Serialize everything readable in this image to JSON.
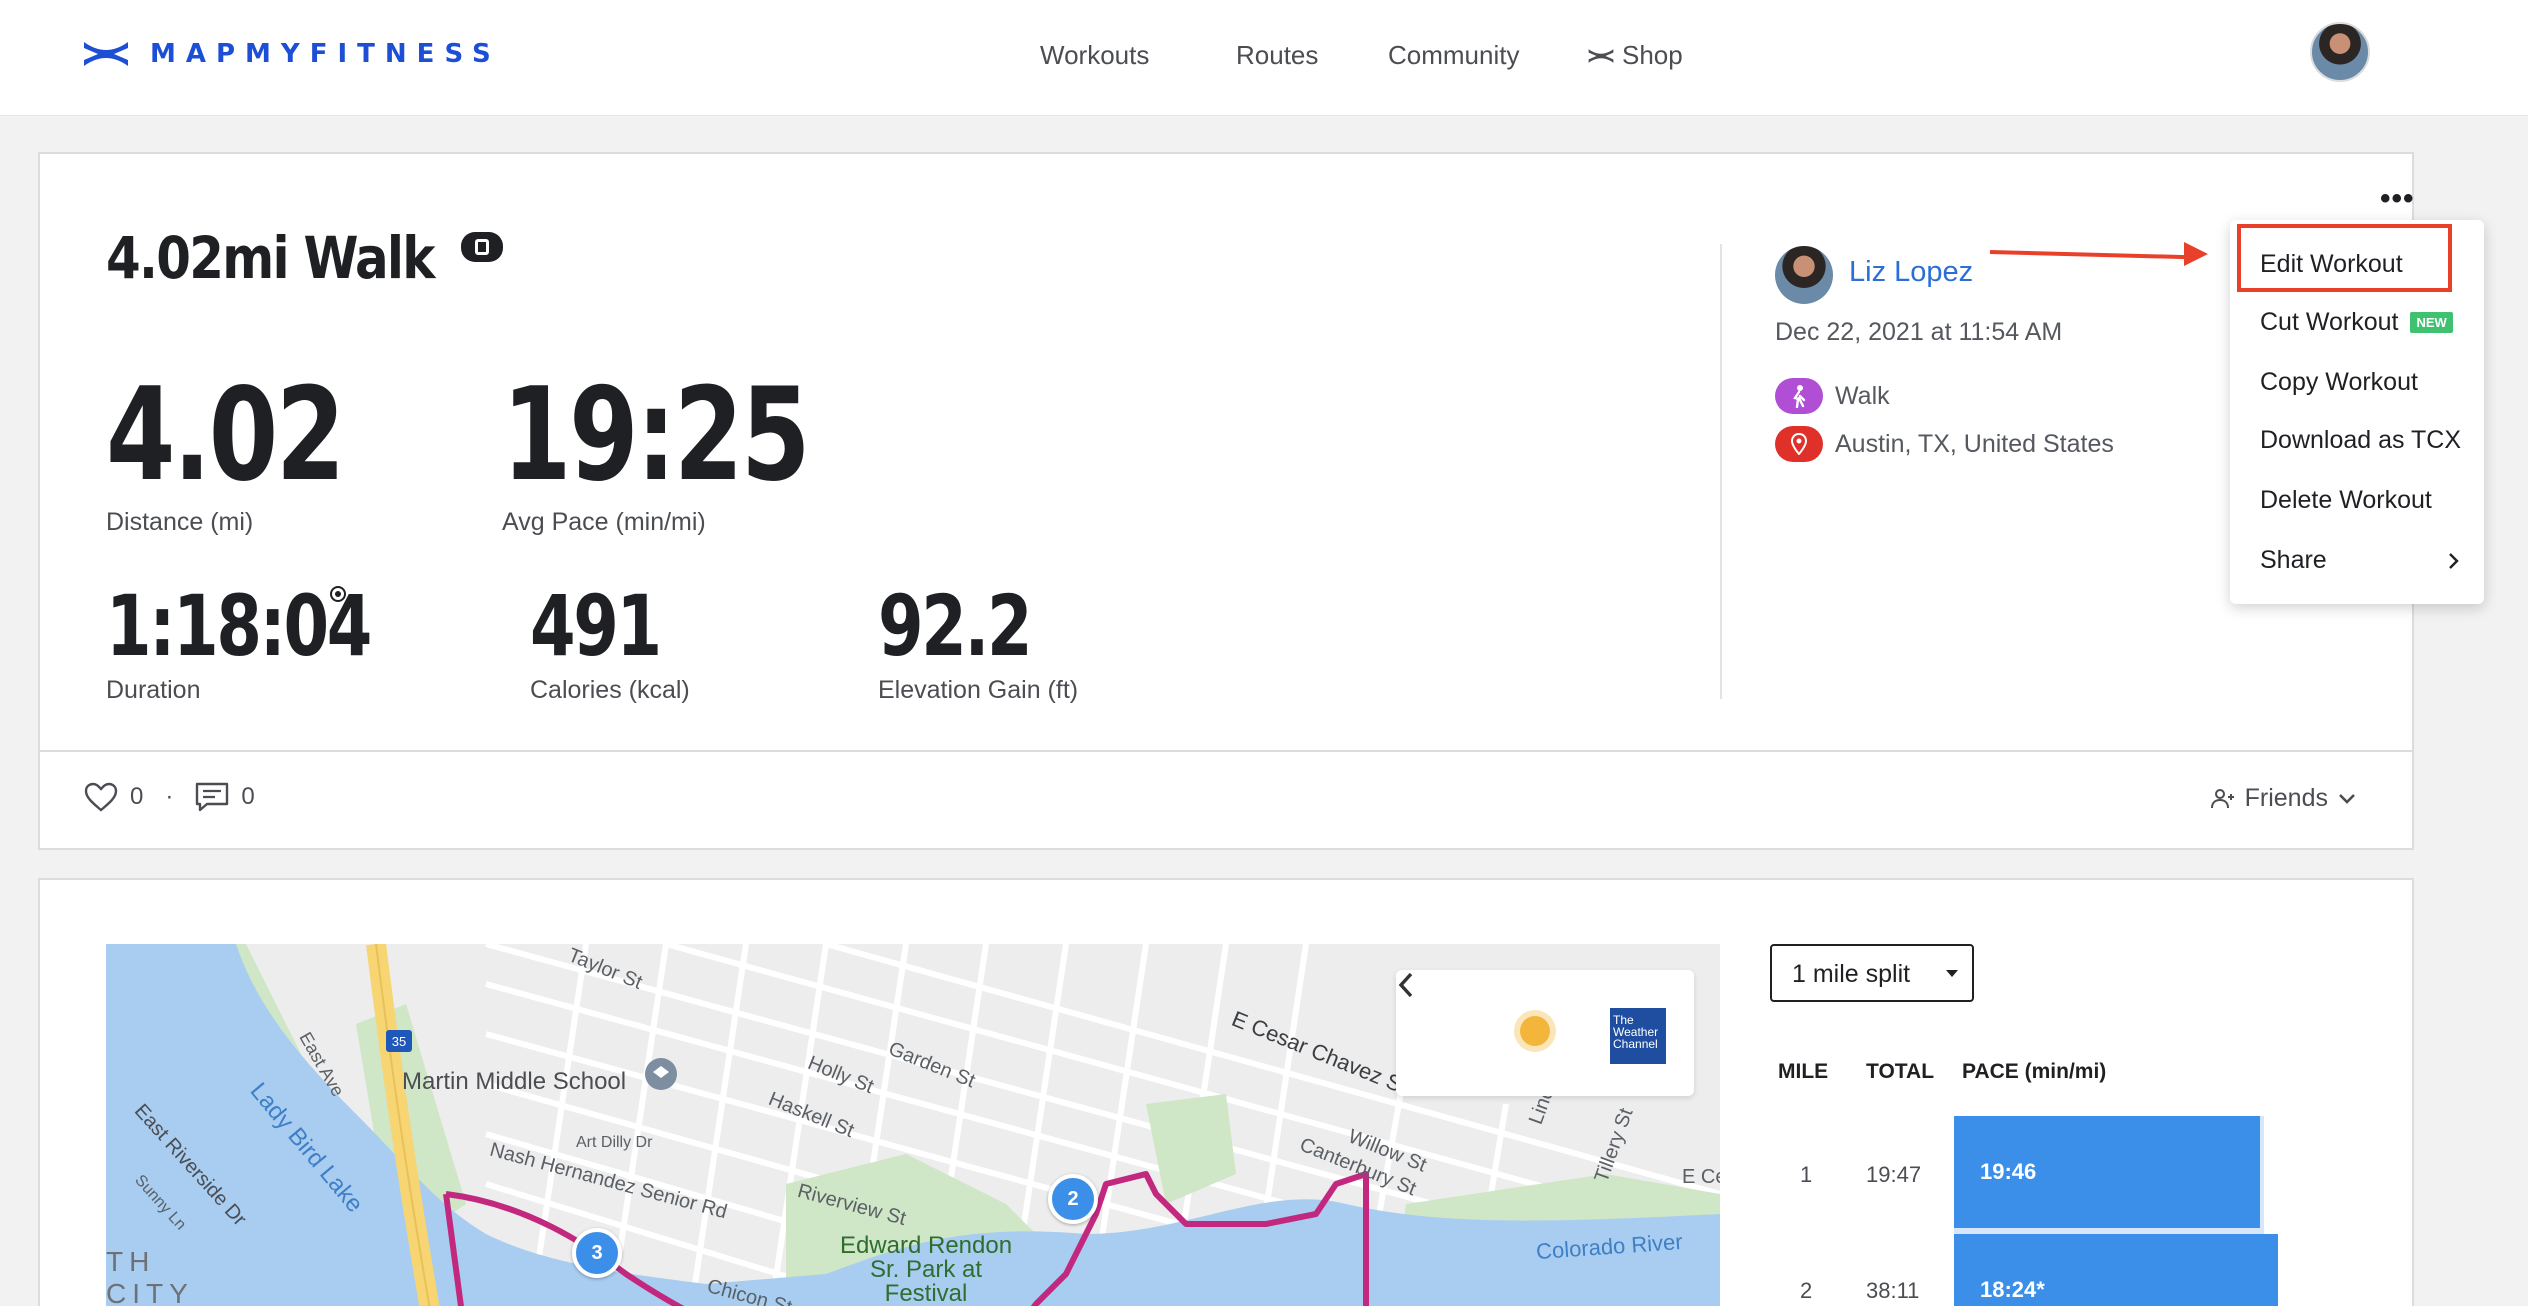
{
  "header": {
    "brand": "MAPMYFITNESS",
    "nav": [
      {
        "label": "Workouts"
      },
      {
        "label": "Routes"
      },
      {
        "label": "Community"
      },
      {
        "label": "Shop"
      }
    ]
  },
  "workout": {
    "title": "4.02mi Walk",
    "stats": {
      "distance": {
        "value": "4.02",
        "label": "Distance (mi)"
      },
      "pace": {
        "value": "19:25",
        "label": "Avg Pace (min/mi)"
      },
      "duration": {
        "value": "1:18:04",
        "label": "Duration"
      },
      "calories": {
        "value": "491",
        "label": "Calories (kcal)"
      },
      "elevation": {
        "value": "92.2",
        "label": "Elevation Gain (ft)"
      }
    },
    "user": {
      "name": "Liz Lopez",
      "date": "Dec 22, 2021 at 11:54 AM",
      "activity": "Walk",
      "location": "Austin, TX, United States"
    },
    "likes": "0",
    "comments": "0",
    "privacy": "Friends"
  },
  "menu": {
    "items": [
      {
        "label": "Edit Workout"
      },
      {
        "label": "Cut Workout",
        "badge": "NEW"
      },
      {
        "label": "Copy Workout"
      },
      {
        "label": "Download as TCX"
      },
      {
        "label": "Delete Workout"
      },
      {
        "label": "Share"
      }
    ]
  },
  "map": {
    "labels": [
      "Martin Middle School",
      "Lady Bird Lake",
      "East Riverside Dr",
      "Nash Hernandez Senior Rd",
      "Riverview St",
      "Edward Rendon Sr. Park at Festival",
      "Colorado River",
      "E Cesar Chavez St",
      "Canterbury St",
      "Holly St",
      "Garden St",
      "Haskell St",
      "Taylor St",
      "Art Dilly Dr",
      "Chicon St",
      "Willow St",
      "Linden",
      "Tillery St",
      "East Ave",
      "Sunny Ln",
      "E Ce",
      "TH",
      "CITY"
    ],
    "markers": [
      "2",
      "3"
    ],
    "highway": "35",
    "weather_brand": "The Weather Channel"
  },
  "splits": {
    "select_label": "1 mile split",
    "headers": [
      "MILE",
      "TOTAL",
      "PACE (min/mi)"
    ],
    "rows": [
      {
        "mile": "1",
        "total": "19:47",
        "pace": "19:46"
      },
      {
        "mile": "2",
        "total": "38:11",
        "pace": "18:24*"
      }
    ]
  },
  "colors": {
    "brand": "#1d4fd6",
    "link": "#2b6fd6",
    "accent_red": "#e8402a",
    "bar": "#3b8fe8",
    "route": "#c2297e"
  }
}
